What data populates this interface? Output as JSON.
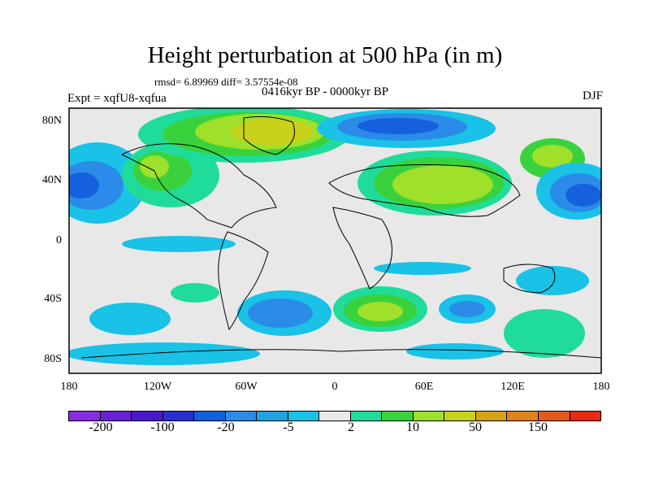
{
  "title": "Height perturbation at 500 hPa (in m)",
  "stats": "rmsd= 6.89969  diff= 3.57554e-08",
  "experiment": "Expt = xqfU8-xqfua",
  "period": "0416kyr BP - 0000kyr BP",
  "season": "DJF",
  "y_ticks": [
    "80N",
    "40N",
    "0",
    "40S",
    "80S"
  ],
  "x_ticks": [
    "180",
    "120W",
    "60W",
    "0",
    "60E",
    "120E",
    "180"
  ],
  "colorbar": {
    "colors": [
      "#8a2be2",
      "#6a1fd8",
      "#4a18cc",
      "#2a2fd0",
      "#1560dc",
      "#2b8be8",
      "#1fa2e0",
      "#19c2e6",
      "#e8e8e8",
      "#1fdc9a",
      "#3ad23c",
      "#9ee02a",
      "#c8d21a",
      "#d4a316",
      "#e0821a",
      "#e45a1c",
      "#e62a14"
    ],
    "labels": [
      "-200",
      "-100",
      "-20",
      "-5",
      "2",
      "10",
      "50",
      "150"
    ]
  },
  "map_colors": {
    "background": "#e8e8e8",
    "coast": "#000000"
  }
}
